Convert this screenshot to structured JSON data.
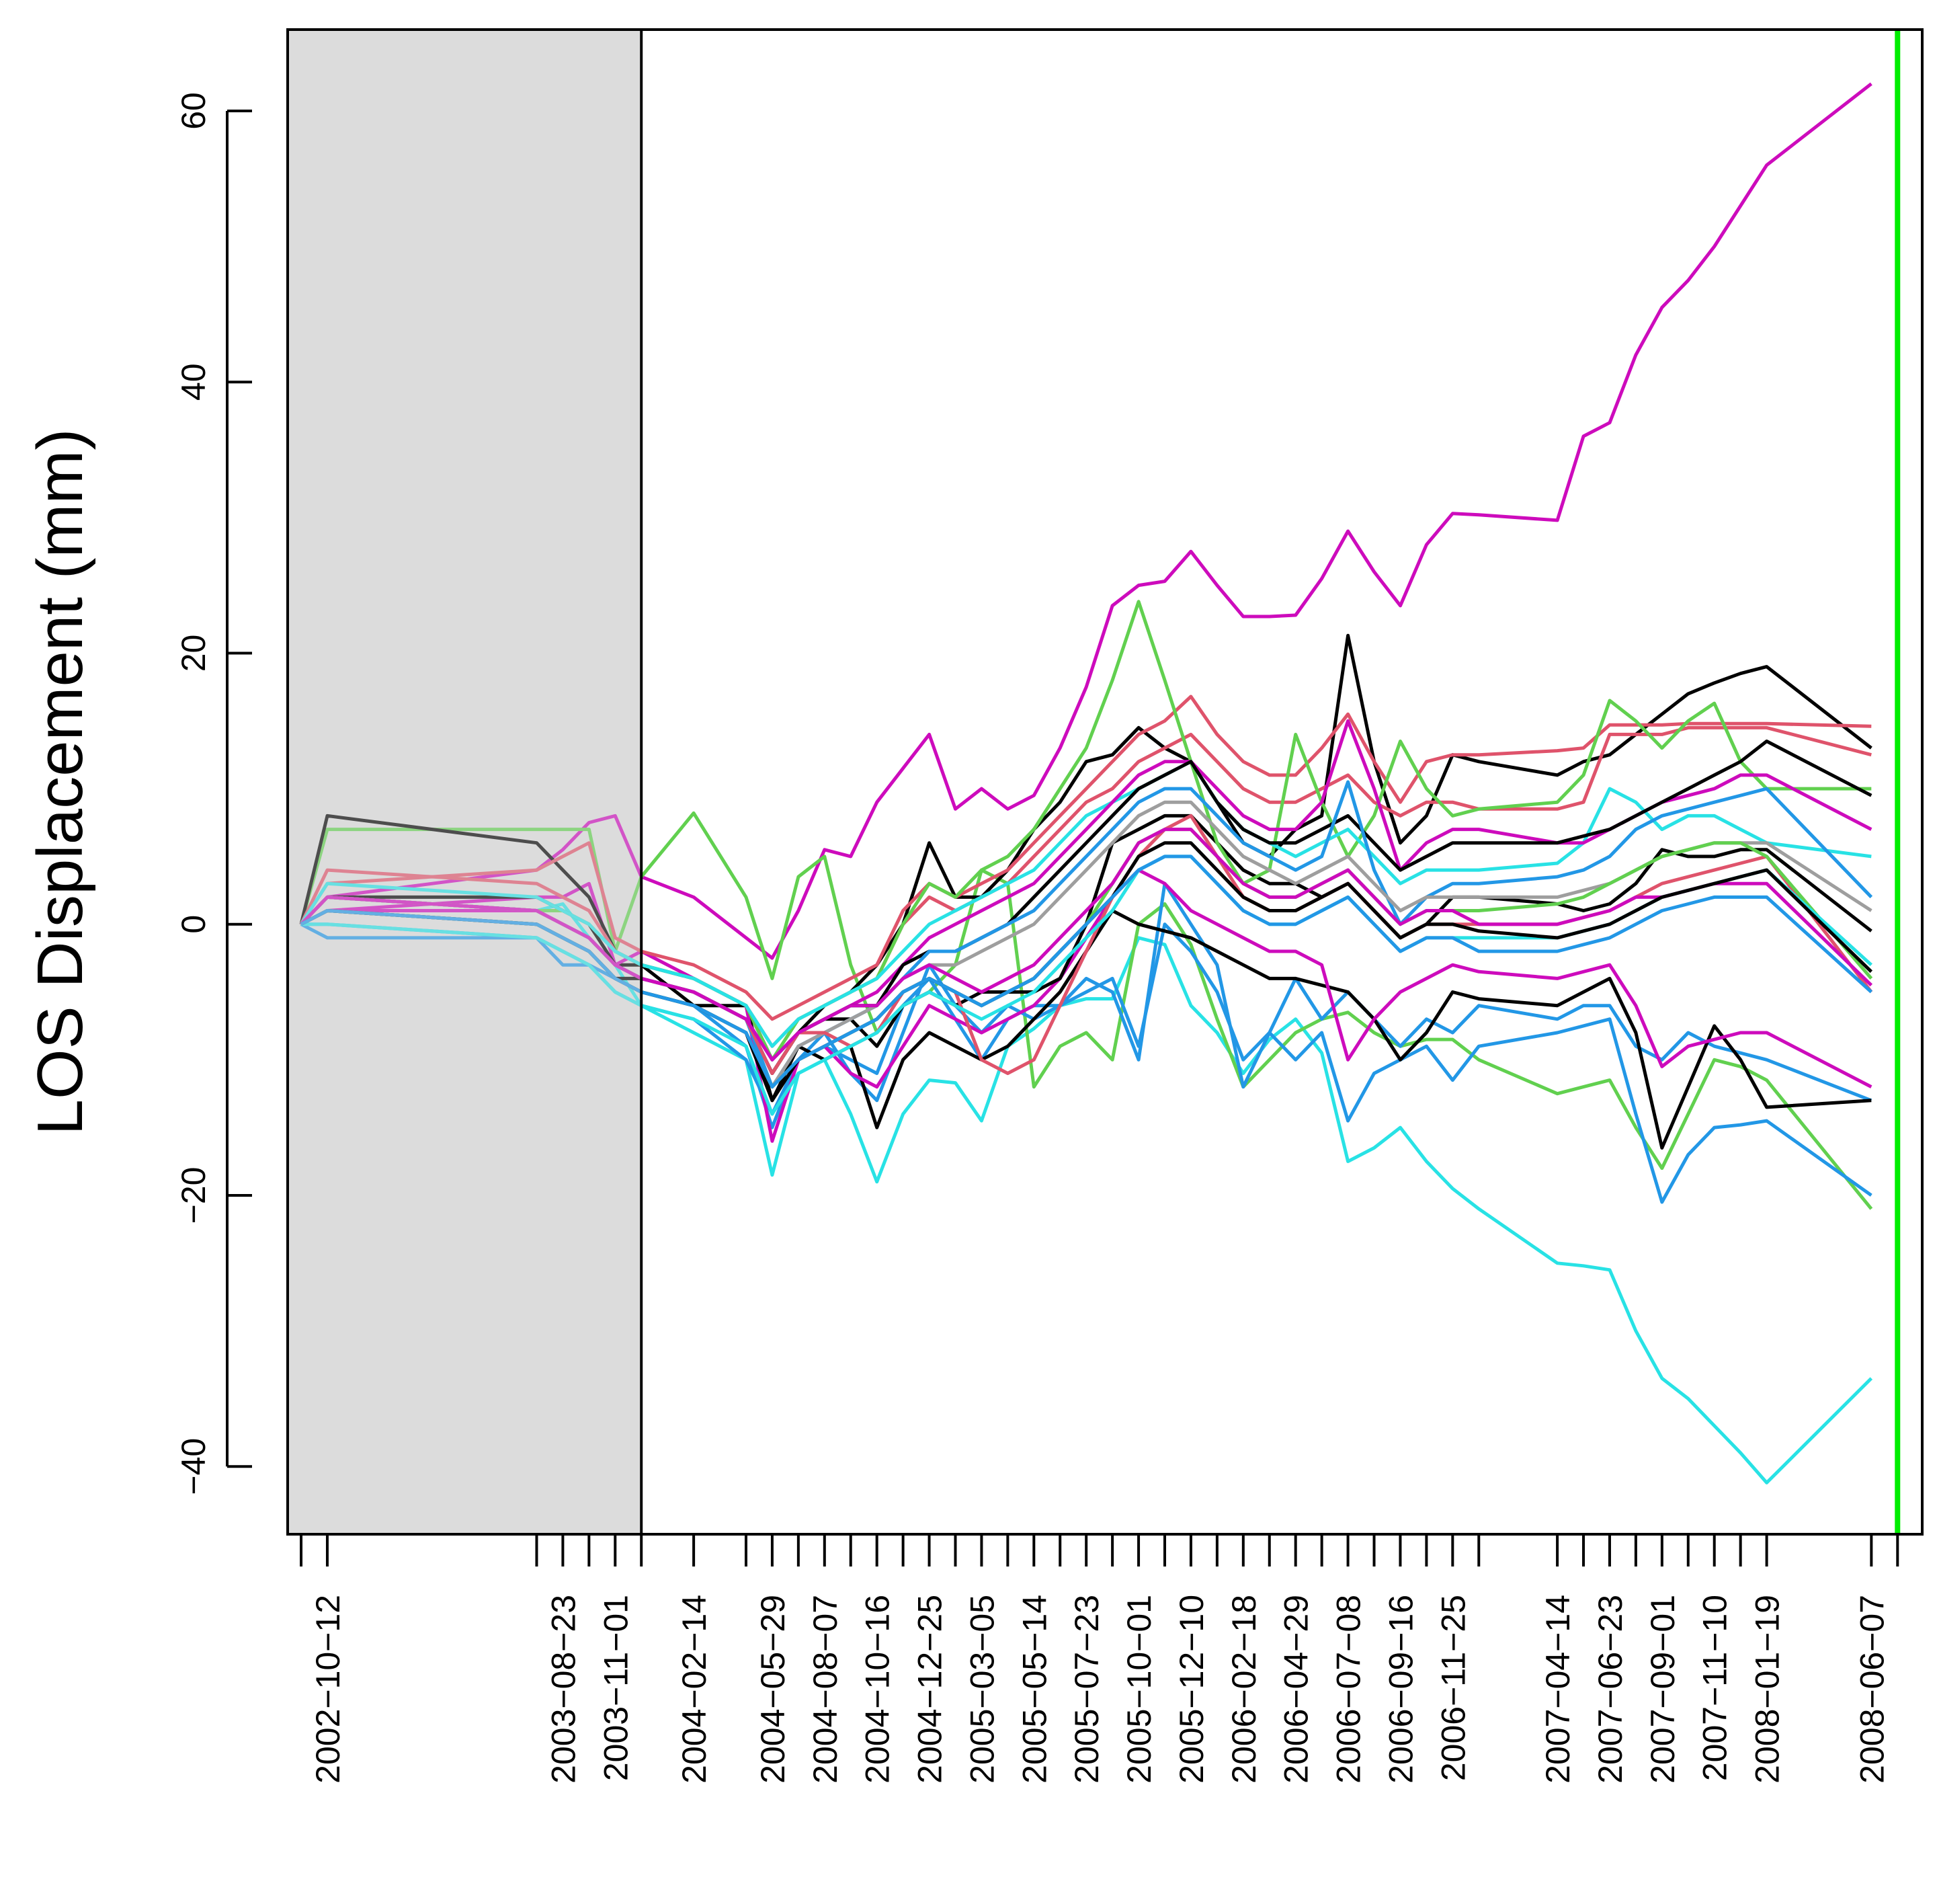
{
  "chart_data": {
    "type": "line",
    "title": "",
    "xlabel": "",
    "ylabel": "LOS Displacement (mm)",
    "ylim": [
      -45,
      66
    ],
    "yticks": [
      60,
      40,
      20,
      0,
      -20,
      -40
    ],
    "x_tick_labels": [
      "2002-10-12",
      "2003-08-23",
      "2003-11-01",
      "2004-02-14",
      "2004-05-29",
      "2004-08-07",
      "2004-10-16",
      "2004-12-25",
      "2005-03-05",
      "2005-05-14",
      "2005-07-23",
      "2005-10-01",
      "2005-12-10",
      "2006-02-18",
      "2006-04-29",
      "2006-07-08",
      "2006-09-16",
      "2006-11-25",
      "2007-04-14",
      "2007-06-23",
      "2007-09-01",
      "2007-11-10",
      "2008-01-19",
      "2008-06-07"
    ],
    "dates": [
      "2002-09-07",
      "2002-10-12",
      "2003-07-19",
      "2003-08-23",
      "2003-09-27",
      "2003-11-01",
      "2003-12-06",
      "2004-02-14",
      "2004-04-24",
      "2004-05-29",
      "2004-07-03",
      "2004-08-07",
      "2004-09-11",
      "2004-10-16",
      "2004-11-20",
      "2004-12-25",
      "2005-01-29",
      "2005-03-05",
      "2005-04-09",
      "2005-05-14",
      "2005-06-18",
      "2005-07-23",
      "2005-08-27",
      "2005-10-01",
      "2005-11-05",
      "2005-12-10",
      "2006-01-14",
      "2006-02-18",
      "2006-03-25",
      "2006-04-29",
      "2006-06-03",
      "2006-07-08",
      "2006-08-12",
      "2006-09-16",
      "2006-10-21",
      "2006-11-25",
      "2006-12-30",
      "2007-04-14",
      "2007-05-19",
      "2007-06-23",
      "2007-07-28",
      "2007-09-01",
      "2007-10-06",
      "2007-11-10",
      "2007-12-15",
      "2008-01-19",
      "2008-06-07"
    ],
    "reference_period": {
      "start": "2002-09-07",
      "end": "2003-12-06",
      "shade": "#dcdcdc"
    },
    "end_marker": {
      "date": "2008-07-12",
      "color": "#00ee00"
    },
    "series": [
      {
        "color": "#cd0bbc",
        "values": [
          0,
          2,
          4,
          5.5,
          7.5,
          8,
          3.5,
          2,
          -1,
          -2.5,
          1,
          5.5,
          5,
          9,
          11.5,
          14,
          8.5,
          10,
          8.5,
          9.5,
          13,
          17.5,
          23.5,
          25,
          25.3,
          27.5,
          25,
          22.7,
          22.7,
          22.8,
          25.5,
          29,
          26,
          23.5,
          28,
          30.3,
          30.2,
          29.8,
          36,
          37,
          42,
          45.5,
          47.5,
          50,
          53,
          56,
          62
        ]
      },
      {
        "color": "#28e2e5",
        "values": [
          0,
          1,
          1,
          1.5,
          -1,
          -3,
          -6,
          -8,
          -10,
          -18.5,
          -11,
          -10,
          -14,
          -19,
          -14,
          -11.5,
          -11.7,
          -14.5,
          -9,
          -7.7,
          -6,
          -5.5,
          -5.5,
          -1,
          -1.5,
          -6,
          -8,
          -11,
          -8.5,
          -7,
          -9.5,
          -17.5,
          -16.5,
          -15,
          -17.5,
          -19.5,
          -21,
          -25,
          -25.2,
          -25.5,
          -30,
          -33.5,
          -35,
          -37,
          -39,
          -41.2,
          -33.5
        ]
      },
      {
        "color": "#61d04f",
        "values": [
          0,
          7,
          7,
          7,
          7,
          -2,
          3.5,
          8.2,
          2,
          -4,
          3.5,
          5,
          -3,
          -8,
          -6,
          -5,
          -3,
          4,
          3,
          -12,
          -9,
          -8,
          -10,
          0,
          1.5,
          -1.5,
          -7,
          -12,
          -10,
          -8,
          -7,
          -6.5,
          -8,
          -9,
          -8.5,
          -8.5,
          -10,
          -12.5,
          -12,
          -11.5,
          -15,
          -18,
          -14,
          -10,
          -10.5,
          -11.5,
          -21
        ]
      },
      {
        "color": "#2297e6",
        "values": [
          0,
          -1,
          -1,
          -2,
          -3,
          -5,
          -6,
          -7,
          -10,
          -14,
          -10,
          -8,
          -11,
          -13,
          -8,
          -3,
          -6,
          -8,
          -6,
          -7,
          -6,
          -5,
          -4,
          -9,
          0,
          -2,
          -5,
          -10,
          -8,
          -10,
          -8,
          -14.5,
          -11,
          -10,
          -9,
          -11.5,
          -9,
          -8,
          -7.5,
          -7,
          -14,
          -20.5,
          -17,
          -15,
          -14.8,
          -14.5,
          -20
        ]
      },
      {
        "color": "#2297e6",
        "values": [
          0,
          0,
          -1,
          -3,
          -3,
          -4,
          -5,
          -6,
          -9,
          -15,
          -10,
          -9,
          -10,
          -11,
          -6,
          -4,
          -7,
          -10,
          -7,
          -6,
          -6,
          -4,
          -5,
          -10,
          3,
          0,
          -3,
          -12,
          -8,
          -4,
          -7,
          -5,
          -7,
          -9,
          -7,
          -8,
          -6,
          -7,
          -6,
          -6,
          -9,
          -10,
          -8,
          -9,
          -9.5,
          -10,
          -13
        ]
      },
      {
        "color": "#000000",
        "values": [
          0,
          2,
          1,
          0,
          -1,
          -3,
          -3,
          -6,
          -6,
          -13,
          -9,
          -10,
          -9,
          -15,
          -10,
          -8,
          -9,
          -10,
          -9,
          -7,
          -5,
          -2,
          1,
          0,
          -0.5,
          -1,
          -2,
          -3,
          -4,
          -4,
          -4.5,
          -5,
          -7,
          -10,
          -8,
          -5,
          -5.5,
          -6,
          -5,
          -4,
          -8,
          -16.5,
          -12,
          -7.5,
          -10,
          -13.5,
          -13
        ]
      },
      {
        "color": "#cd0bbc",
        "values": [
          0,
          1,
          2,
          2,
          3,
          -3,
          -2,
          -4,
          -6,
          -16,
          -10,
          -9,
          -11,
          -12,
          -9,
          -6,
          -7,
          -8,
          -7,
          -6,
          -4,
          -1,
          2,
          4,
          3,
          1,
          0,
          -1,
          -2,
          -2,
          -3,
          -10,
          -7,
          -5,
          -4,
          -3,
          -3.5,
          -4,
          -3.5,
          -3,
          -6,
          -10.5,
          -9,
          -8.5,
          -8,
          -8,
          -12
        ]
      },
      {
        "color": "#000000",
        "values": [
          0,
          8,
          6,
          4,
          2,
          -2,
          -3,
          -4,
          -6,
          -10,
          -8,
          -7,
          -7,
          -9,
          -6,
          -5,
          -6,
          -5,
          -5,
          -5,
          -4,
          0,
          6,
          7,
          8,
          8,
          6,
          4,
          3,
          3,
          2,
          3,
          1,
          -1,
          0,
          2,
          2,
          1.5,
          1,
          1.5,
          3,
          5.5,
          5,
          5,
          5.5,
          5.5,
          -0.5
        ]
      },
      {
        "color": "#000000",
        "values": [
          0,
          2,
          2,
          1,
          0,
          -3,
          -4,
          -5,
          -7,
          -11,
          -8,
          -6,
          -5,
          -3,
          0,
          6,
          2,
          2,
          4,
          7,
          9,
          12,
          12.5,
          14.5,
          13,
          12,
          9,
          6,
          5,
          7,
          8,
          21.3,
          12,
          6,
          8,
          12.5,
          12,
          11,
          12,
          12.5,
          14,
          15.5,
          17,
          17.8,
          18.5,
          19,
          13
        ]
      },
      {
        "color": "#df536b",
        "values": [
          0,
          3,
          4,
          5,
          6,
          -1,
          -2,
          -3,
          -5,
          -7,
          -6,
          -5,
          -4,
          -3,
          1,
          3,
          2,
          3,
          4,
          6,
          8,
          10,
          12,
          14,
          15,
          16.8,
          14,
          12,
          11,
          11,
          13,
          15.5,
          12,
          9,
          12,
          12.5,
          12.5,
          12.8,
          13,
          14.7,
          14.7,
          14.7,
          14.8,
          14.8,
          14.8,
          14.8,
          14.6
        ]
      },
      {
        "color": "#df536b",
        "values": [
          0,
          4,
          3,
          2,
          1,
          -2,
          -3,
          -4,
          -6,
          -9,
          -7,
          -6,
          -5,
          -4,
          0,
          2,
          1,
          2,
          3,
          5,
          7,
          9,
          10,
          12,
          13,
          14,
          12,
          10,
          9,
          9,
          10,
          11,
          9,
          8,
          9,
          9,
          8.5,
          8.5,
          9,
          14,
          14,
          14,
          14.5,
          14.5,
          14.5,
          14.5,
          12.5
        ]
      },
      {
        "color": "#61d04f",
        "values": [
          0,
          2,
          1,
          1,
          0,
          -2,
          -3,
          -4,
          -6,
          -10,
          -7,
          -6,
          -5,
          -4,
          0,
          3,
          2,
          4,
          5,
          7,
          10,
          13,
          18,
          23.8,
          18,
          12,
          6,
          3,
          4,
          14,
          9,
          5,
          8,
          13.5,
          10,
          8,
          8.5,
          9,
          11,
          16.5,
          15,
          13,
          15,
          16.3,
          12,
          10,
          10
        ]
      },
      {
        "color": "#28e2e5",
        "values": [
          0,
          3,
          2,
          1,
          0,
          -2,
          -3,
          -4,
          -6,
          -9,
          -7,
          -6,
          -5,
          -4,
          -2,
          0,
          1,
          2,
          3,
          4,
          6,
          8,
          9,
          10,
          11,
          12,
          9,
          7,
          6,
          5,
          6,
          7,
          5,
          3,
          4,
          4,
          4,
          4.5,
          6,
          10,
          9,
          7,
          8,
          8,
          7,
          6,
          5
        ]
      },
      {
        "color": "#cd0bbc",
        "values": [
          0,
          1,
          1,
          0,
          -1,
          -3,
          -4,
          -5,
          -7,
          -10,
          -8,
          -7,
          -6,
          -5,
          -3,
          -1,
          0,
          1,
          2,
          3,
          5,
          7,
          9,
          11,
          12,
          12,
          10,
          8,
          7,
          7,
          9,
          15,
          10,
          4,
          6,
          7,
          7,
          6,
          6,
          7,
          8,
          9,
          9.5,
          10,
          11,
          11,
          7
        ]
      },
      {
        "color": "#000000",
        "values": [
          0,
          1,
          0,
          -1,
          -2,
          -4,
          -4,
          -5,
          -7,
          -11,
          -8,
          -7,
          -6,
          -6,
          -3,
          -2,
          -2,
          -1,
          0,
          2,
          4,
          6,
          8,
          10,
          11,
          12,
          9,
          7,
          6,
          6,
          7,
          8,
          6,
          4,
          5,
          6,
          6,
          6,
          6.5,
          7,
          8,
          9,
          10,
          11,
          12,
          13.5,
          9.5
        ]
      },
      {
        "color": "#2297e6",
        "values": [
          0,
          2,
          1,
          0,
          -1,
          -3,
          -4,
          -5,
          -7,
          -12,
          -9,
          -8,
          -7,
          -6,
          -4,
          -2,
          -2,
          -1,
          0,
          1,
          3,
          5,
          7,
          9,
          10,
          10,
          8,
          6,
          5,
          4,
          5,
          10.5,
          4,
          0,
          2,
          3,
          3,
          3.5,
          4,
          5,
          7,
          8,
          8.5,
          9,
          9.5,
          10,
          2
        ]
      },
      {
        "color": "#9e9e9e",
        "values": [
          0,
          1,
          0,
          -1,
          -2,
          -4,
          -5,
          -6,
          -8,
          -12,
          -9,
          -8,
          -7,
          -6,
          -4,
          -3,
          -3,
          -2,
          -1,
          0,
          2,
          4,
          6,
          8,
          9,
          9,
          7,
          5,
          4,
          3,
          4,
          5,
          3,
          1,
          2,
          2,
          2,
          2,
          2.5,
          3,
          4,
          5,
          5.5,
          6,
          6,
          6,
          1
        ]
      },
      {
        "color": "#df536b",
        "values": [
          0,
          2,
          1,
          0,
          -1,
          -3,
          -4,
          -5,
          -7,
          -11,
          -8,
          -8,
          -9,
          -8,
          -5,
          -4,
          -5,
          -10,
          -11,
          -10,
          -6,
          -2,
          2,
          5,
          7,
          8,
          5,
          2,
          1,
          1,
          2,
          3,
          1,
          -1,
          0,
          0,
          0,
          0,
          0.5,
          1,
          2,
          3,
          3.5,
          4,
          4.5,
          5,
          -5
        ]
      },
      {
        "color": "#61d04f",
        "values": [
          0,
          1,
          0,
          -1,
          -2,
          -4,
          -5,
          -6,
          -8,
          -12,
          -10,
          -9,
          -8,
          -7,
          -5,
          -4,
          -5,
          -6,
          -5,
          -4,
          -2,
          0,
          3,
          6,
          7,
          7,
          5,
          3,
          2,
          2,
          3,
          4,
          2,
          0,
          1,
          1,
          1,
          1.5,
          2,
          3,
          4,
          5,
          5.5,
          6,
          6,
          5,
          -4
        ]
      },
      {
        "color": "#28e2e5",
        "values": [
          0,
          0,
          -1,
          -2,
          -3,
          -5,
          -6,
          -7,
          -9,
          -14,
          -11,
          -10,
          -9,
          -8,
          -6,
          -5,
          -6,
          -7,
          -6,
          -5,
          -3,
          -1,
          1,
          4,
          5,
          5,
          3,
          1,
          0,
          0,
          1,
          2,
          0,
          -2,
          -1,
          -1,
          -1,
          -1,
          -0.5,
          0,
          1,
          2,
          2.5,
          3,
          3.5,
          4,
          -3
        ]
      },
      {
        "color": "#cd0bbc",
        "values": [
          0,
          2,
          1,
          0,
          -1,
          -3,
          -4,
          -5,
          -7,
          -10,
          -8,
          -7,
          -6,
          -6,
          -4,
          -3,
          -4,
          -5,
          -4,
          -3,
          -1,
          1,
          3,
          6,
          7,
          7,
          5,
          3,
          2,
          2,
          3,
          4,
          2,
          0,
          1,
          1,
          0,
          0,
          0.5,
          1,
          2,
          2,
          2.5,
          3,
          3,
          3,
          -4.5
        ]
      },
      {
        "color": "#000000",
        "values": [
          0,
          1,
          0,
          -1,
          -2,
          -4,
          -5,
          -6,
          -8,
          -13,
          -10,
          -9,
          -8,
          -7,
          -5,
          -4,
          -5,
          -6,
          -5,
          -4,
          -2,
          0,
          2,
          5,
          6,
          6,
          4,
          2,
          1,
          1,
          2,
          3,
          1,
          -1,
          0,
          0,
          -0.5,
          -1,
          -0.5,
          0,
          1,
          2,
          2.5,
          3,
          3.5,
          4,
          -3.5
        ]
      },
      {
        "color": "#2297e6",
        "values": [
          0,
          1,
          0,
          -1,
          -2,
          -4,
          -5,
          -6,
          -8,
          -12,
          -10,
          -9,
          -8,
          -7,
          -5,
          -4,
          -5,
          -6,
          -5,
          -4,
          -2,
          0,
          2,
          4,
          5,
          5,
          3,
          1,
          0,
          0,
          1,
          2,
          0,
          -2,
          -1,
          -1,
          -2,
          -2,
          -1.5,
          -1,
          0,
          1,
          1.5,
          2,
          2,
          2,
          -5
        ]
      }
    ]
  }
}
